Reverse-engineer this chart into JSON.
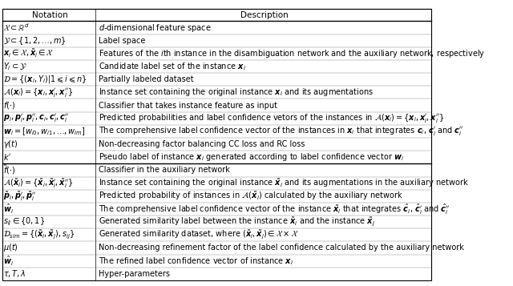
{
  "title_row": [
    "Notation",
    "Description"
  ],
  "rows_part1": [
    [
      "$\\mathcal{X} \\subset \\mathbb{R}^d$",
      "$d$-dimensional feature space"
    ],
    [
      "$\\mathcal{Y} \\subset \\{1, 2, \\ldots, m\\}$",
      "Label space"
    ],
    [
      "$\\boldsymbol{x}_i \\in \\mathcal{X}, \\tilde{\\boldsymbol{x}}_i \\in \\mathcal{X}$",
      "Features of the $i$th instance in the disambiguation network and the auxiliary network, respectively"
    ],
    [
      "$Y_i \\subset \\mathcal{Y}$",
      "Candidate label set of the instance $\\boldsymbol{x}_i$"
    ],
    [
      "$\\mathcal{D} = \\{(\\boldsymbol{x}_i, Y_i) | 1 \\leqslant i \\leqslant n\\}$",
      "Partially labeled dataset"
    ],
    [
      "$\\mathcal{A}(\\boldsymbol{x}_i) = \\{\\boldsymbol{x}_i, \\boldsymbol{x}_i^{\\prime}, \\boldsymbol{x}_i^{\\prime\\prime}\\}$",
      "Instance set containing the original instance $\\boldsymbol{x}_i$ and its augmentations"
    ],
    [
      "$f(\\cdot)$",
      "Classifier that takes instance feature as input"
    ],
    [
      "$\\boldsymbol{p}_i, \\boldsymbol{p}_i^{\\prime}, \\boldsymbol{p}_i^{\\prime\\prime}, \\boldsymbol{c}_i, \\boldsymbol{c}_i^{\\prime}, \\boldsymbol{c}_i^{\\prime\\prime}$",
      "Predicted probabilities and label confidence vetors of the instances in $\\mathcal{A}(\\boldsymbol{x}_i) = \\{\\boldsymbol{x}_i, \\boldsymbol{x}_i^{\\prime}, \\boldsymbol{x}_i^{\\prime\\prime}\\}$"
    ],
    [
      "$\\boldsymbol{w}_i = [w_{i0}, w_{i1}, \\ldots, w_{im}]$",
      "The comprehensive label confidence vector of the instances in $\\boldsymbol{x}_i$ that integrates $\\boldsymbol{c}_i$, $\\boldsymbol{c}_i^{\\prime}$ and $\\boldsymbol{c}_i^{\\prime\\prime}$"
    ],
    [
      "$\\gamma(t)$",
      "Non-decreasing factor balancing CC loss and RC loss"
    ],
    [
      "$k^{\\prime}$",
      "Pseudo label of instance $\\boldsymbol{x}_i$ generated according to label confidence vector $\\boldsymbol{w}_i$"
    ]
  ],
  "rows_part2": [
    [
      "$\\tilde{f}(\\cdot)$",
      "Classifier in the auxiliary network"
    ],
    [
      "$\\mathcal{A}(\\tilde{\\boldsymbol{x}}_i) = \\{\\tilde{\\boldsymbol{x}}_i, \\tilde{\\boldsymbol{x}}_i^{\\prime}, \\tilde{\\boldsymbol{x}}_i^{\\prime\\prime}\\}$",
      "Instance set containing the original instance $\\tilde{\\boldsymbol{x}}_i$ and its augmentations in the auxiliary network"
    ],
    [
      "$\\tilde{\\boldsymbol{p}}_i, \\tilde{\\boldsymbol{p}}_i^{\\prime}, \\tilde{\\boldsymbol{p}}_i^{\\prime\\prime}$",
      "Predicted probability of instances in $\\mathcal{A}(\\tilde{\\boldsymbol{x}}_i)$ calculated by the auxiliary network"
    ],
    [
      "$\\hat{\\boldsymbol{w}}_i$",
      "The comprehensive label confidence vector of the instance $\\tilde{\\boldsymbol{x}}_i$ that integrates $\\hat{\\boldsymbol{c}}_i$, $\\hat{\\boldsymbol{c}}_i^{\\prime}$ and $\\hat{\\boldsymbol{c}}_i^{\\prime\\prime}$"
    ],
    [
      "$s_{ij} \\in \\{0, 1\\}$",
      "Generated similarity label between the instance $\\tilde{\\boldsymbol{x}}_i$ and the instance $\\tilde{\\boldsymbol{x}}_j$"
    ],
    [
      "$\\mathcal{D}_{sim} = \\{(\\tilde{\\boldsymbol{x}}_i, \\tilde{\\boldsymbol{x}}_j), s_{ij}\\}$",
      "Generated similarity dataset, where $(\\tilde{\\boldsymbol{x}}_i, \\tilde{\\boldsymbol{x}}_j) \\in \\mathcal{X} \\times \\mathcal{X}$"
    ],
    [
      "$\\mu(t)$",
      "Non-decreasing refinement factor of the label confidence calculated by the auxiliary network"
    ],
    [
      "$\\hat{\\boldsymbol{w}}_i$",
      "The refined label confidence vector of instance $\\boldsymbol{x}_i$"
    ],
    [
      "$\\tau, T, \\lambda$",
      "Hyper-parameters"
    ]
  ],
  "col_split": 0.22,
  "bg_color": "#ffffff",
  "text_color": "#000000",
  "header_color": "#ffffff",
  "line_color": "#000000",
  "fontsize": 7.5
}
